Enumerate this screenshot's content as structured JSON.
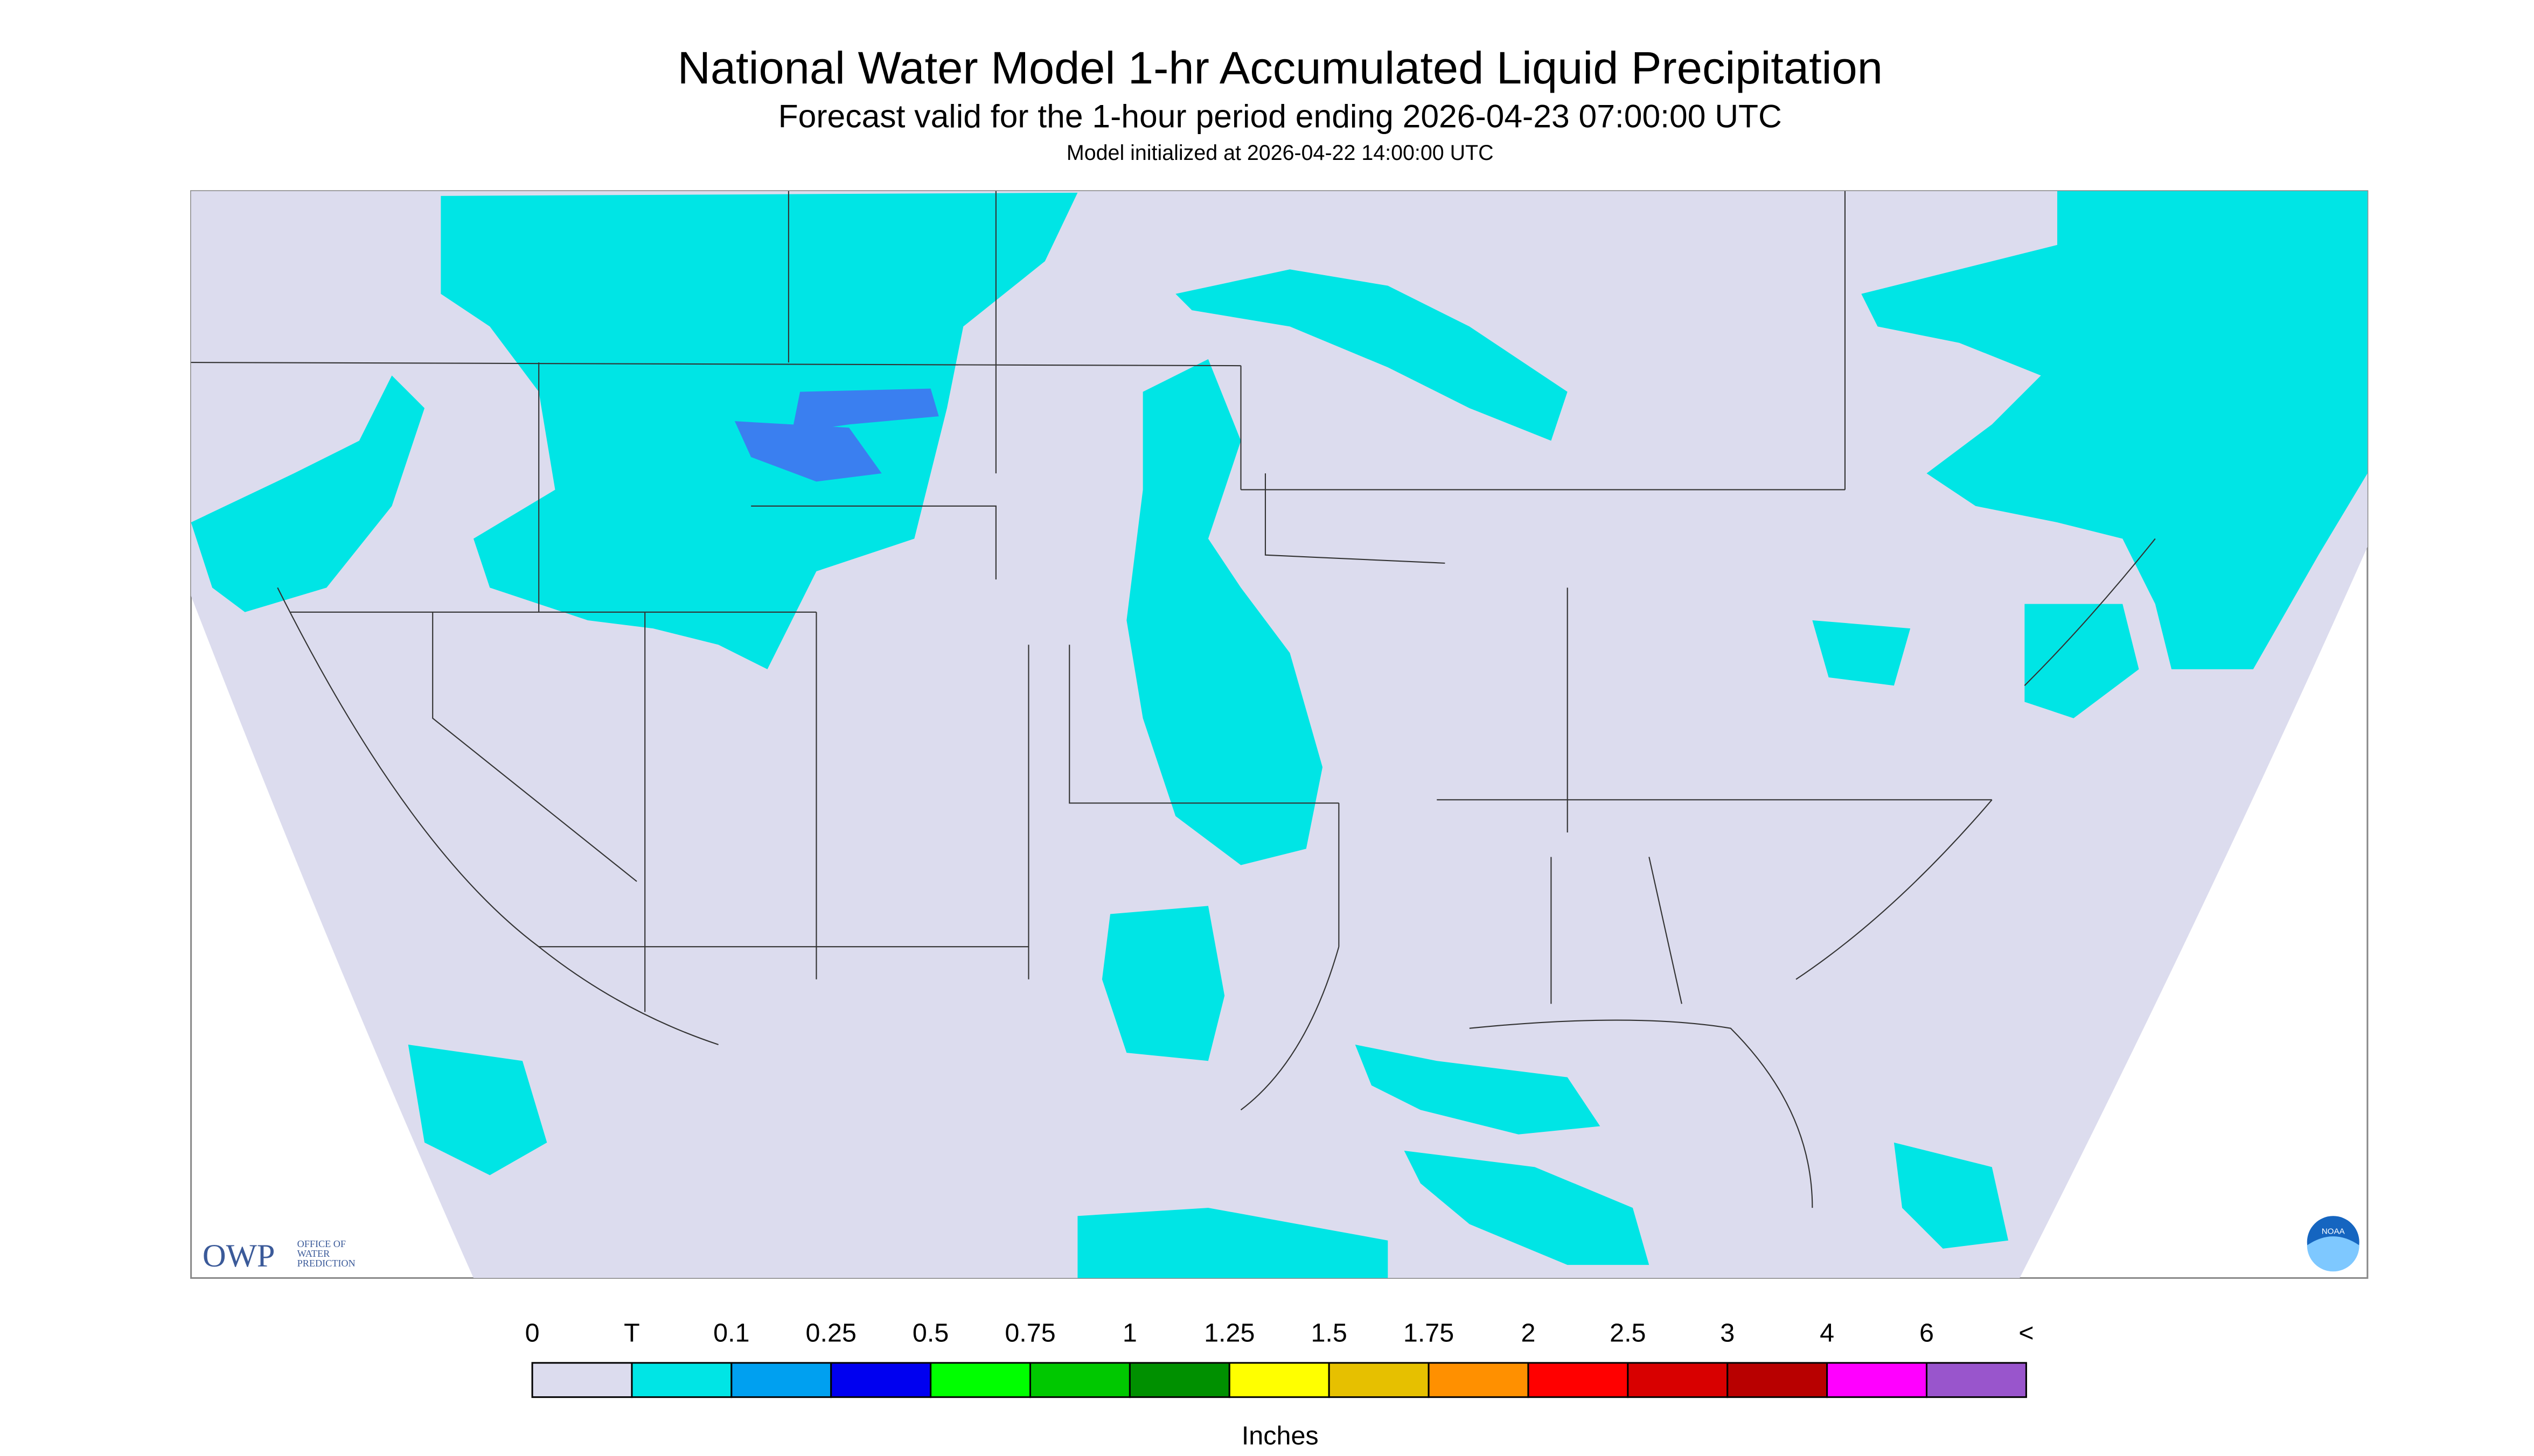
{
  "header": {
    "title": "National Water Model 1-hr Accumulated Liquid Precipitation",
    "subtitle": "Forecast valid for the 1-hour period ending 2026-04-23 07:00:00 UTC",
    "initialized": "Model initialized at 2026-04-22 14:00:00 UTC"
  },
  "logo": {
    "acronym": "OWP",
    "lines": [
      "OFFICE OF",
      "WATER",
      "PREDICTION"
    ],
    "noaa": "NOAA"
  },
  "legend": {
    "labels": [
      "0",
      "T",
      "0.1",
      "0.25",
      "0.5",
      "0.75",
      "1",
      "1.25",
      "1.5",
      "1.75",
      "2",
      "2.5",
      "3",
      "4",
      "6",
      "<"
    ],
    "colors": [
      "#dcdcee",
      "#00e5e5",
      "#00a0f0",
      "#0000f0",
      "#00ff00",
      "#00c800",
      "#009000",
      "#ffff00",
      "#e6c000",
      "#ff9000",
      "#ff0000",
      "#d80000",
      "#b80000",
      "#ff00ff",
      "#9955cc"
    ],
    "unit": "Inches"
  }
}
